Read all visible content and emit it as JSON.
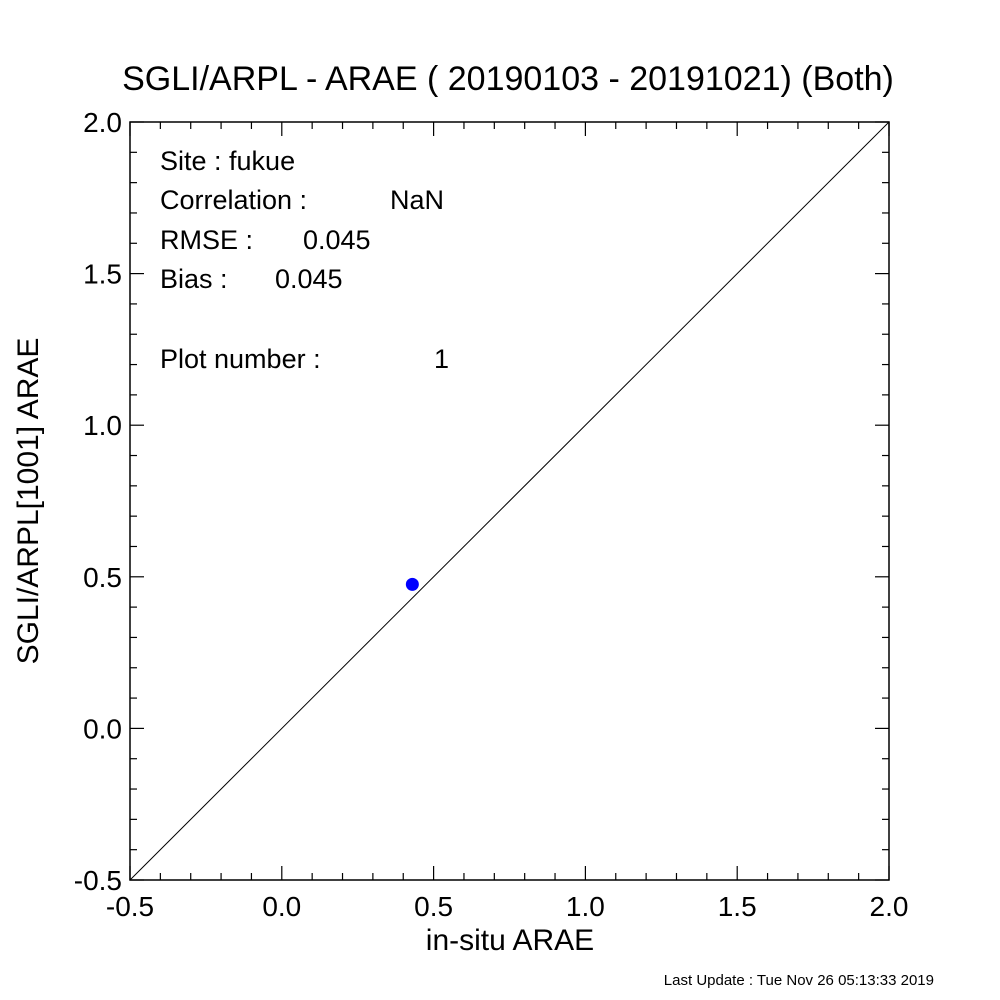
{
  "chart_data": {
    "type": "scatter",
    "title": "SGLI/ARPL - ARAE ( 20190103 - 20191021) (Both)",
    "xlabel": "in-situ ARAE",
    "ylabel": "SGLI/ARPL[1001]    ARAE",
    "xlim": [
      -0.5,
      2.0
    ],
    "ylim": [
      -0.5,
      2.0
    ],
    "x_ticks": [
      "-0.5",
      "0.0",
      "0.5",
      "1.0",
      "1.5",
      "2.0"
    ],
    "y_ticks": [
      "-0.5",
      "0.0",
      "0.5",
      "1.0",
      "1.5",
      "2.0"
    ],
    "grid": false,
    "reference_line": "1:1",
    "series": [
      {
        "color": "#0000ff",
        "points": [
          {
            "x": 0.43,
            "y": 0.475
          }
        ]
      }
    ],
    "annotations": {
      "site": "Site : fukue",
      "correlation_label": "Correlation :",
      "correlation_value": "NaN",
      "rmse_label": "RMSE :",
      "rmse_value": "0.045",
      "bias_label": "Bias :",
      "bias_value": "0.045",
      "plot_number_label": "Plot number :",
      "plot_number_value": "1"
    }
  },
  "footer": {
    "last_update": "Last Update : Tue Nov 26 05:13:33 2019"
  },
  "colors": {
    "marker": "#0000ff",
    "axis": "#000000"
  }
}
